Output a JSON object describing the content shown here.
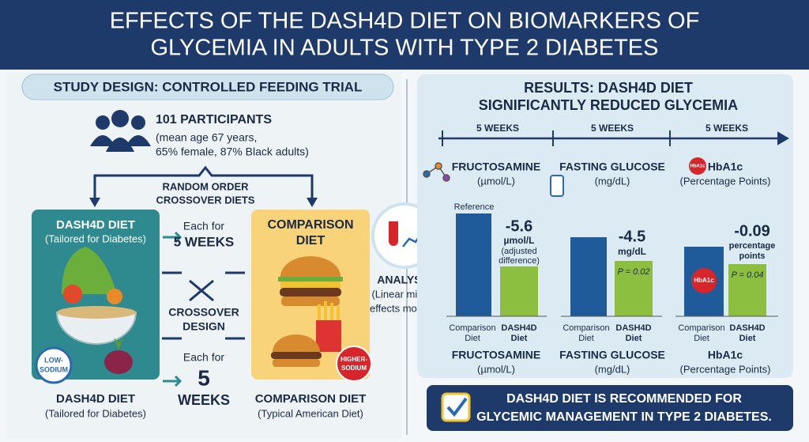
{
  "header": {
    "title_lines": [
      "EFFECTS OF THE DASH4D DIET ON BIOMARKERS OF",
      "GLYCEMIA IN ADULTS WITH TYPE 2 DIABETES"
    ]
  },
  "study_design": {
    "heading": "STUDY DESIGN: CONTROLLED FEEDING TRIAL",
    "participants": {
      "count": "101 PARTICIPANTS",
      "details": [
        "(mean age 67 years,",
        "65% female, 87% Black adults)"
      ]
    },
    "random_order": [
      "RANDOM ORDER",
      "CROSSOVER DIETS"
    ],
    "dash_top": {
      "name": "DASH4D DIET",
      "note": "(Tailored for Diabetes)"
    },
    "period_top": [
      "Each for",
      "5 WEEKS"
    ],
    "comparison_top": [
      "COMPARISON",
      "DIET"
    ],
    "crossover": [
      "CROSSOVER",
      "DESIGN"
    ],
    "period_bottom": [
      "Each for",
      "5",
      "WEEKS"
    ],
    "low_sodium": [
      "LOW-",
      "SODIUM"
    ],
    "higher_sodium": [
      "HIGHER-",
      "SODIUM"
    ],
    "dash_bottom": {
      "name": "DASH4D DIET",
      "note": "(Tailored for Diabetes)"
    },
    "comparison_bottom": {
      "name": "COMPARISON DIET",
      "note": "(Typical American Diet)"
    },
    "analysis": {
      "title": "ANALYSIS",
      "note": [
        "(Linear mixed-",
        "effects models)"
      ]
    }
  },
  "results": {
    "heading": [
      "RESULTS: DASH4D DIET",
      "SIGNIFICANTLY REDUCED GLYCEMIA"
    ],
    "timeline": [
      "5 WEEKS",
      "5 WEEKS",
      "5 WEEKS"
    ],
    "reference": "Reference",
    "bar_labels": {
      "comparison": [
        "Comparison",
        "Diet"
      ],
      "dash": [
        "DASH4D",
        "Diet"
      ]
    },
    "panels": [
      {
        "name": "FRUCTOSAMINE",
        "unit": "(µmol/L)",
        "effect": "-5.6",
        "effect_unit": [
          "µmol/L",
          "(adjusted",
          "difference)"
        ]
      },
      {
        "name": "FASTING GLUCOSE",
        "unit": "(mg/dL)",
        "effect": "-4.5",
        "effect_unit": [
          "mg/dL"
        ],
        "p": "P = 0.02"
      },
      {
        "name": "HbA1c",
        "unit": "(Percentage Points)",
        "effect": "-0.09",
        "effect_unit": [
          "percentage",
          "points"
        ],
        "p": "P = 0.04"
      }
    ]
  },
  "conclusion": [
    "DASH4D DIET IS RECOMMENDED FOR",
    "GLYCEMIC MANAGEMENT IN TYPE 2 DIABETES."
  ]
}
